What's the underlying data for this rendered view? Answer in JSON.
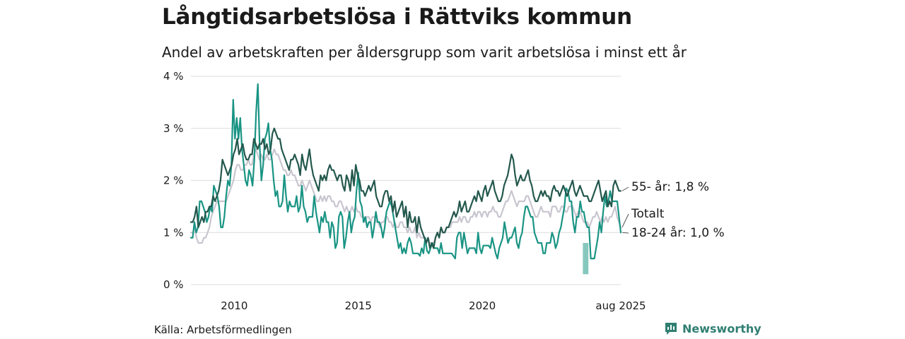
{
  "header": {
    "title": "Långtidsarbetslösa i Rättviks kommun",
    "subtitle": "Andel av arbetskraften per åldersgrupp som varit arbetslösa i minst ett år"
  },
  "footer": {
    "source": "Källa: Arbetsförmedlingen",
    "brand": "Newsworthy"
  },
  "colors": {
    "age55": "#24584d",
    "total": "#c9c6d0",
    "age18_24": "#1a9484",
    "age18_24_band": "#86c8bd",
    "grid": "#dcdcdc",
    "brand": "#2f7f72"
  },
  "chart_data": {
    "type": "line",
    "ylim": [
      0,
      4
    ],
    "y_ticks": [
      0,
      1,
      2,
      3,
      4
    ],
    "y_tick_labels": [
      "0 %",
      "1 %",
      "2 %",
      "3 %",
      "4 %"
    ],
    "x_ticks": [
      {
        "date": "2010-01",
        "label": "2010"
      },
      {
        "date": "2015-01",
        "label": "2015"
      },
      {
        "date": "2020-01",
        "label": "2020"
      },
      {
        "date": "2025-08",
        "label": "aug 2025"
      }
    ],
    "x_start": "2008-04",
    "x_end": "2025-08",
    "series": [
      {
        "name": "55- år",
        "end_label": "55- år: 1,8 %",
        "color": "#24584d",
        "values": [
          1.2,
          1.2,
          1.3,
          1.5,
          1.1,
          1.2,
          1.3,
          1.2,
          1.4,
          1.4,
          1.5,
          1.5,
          1.7,
          1.6,
          1.7,
          1.8,
          2.0,
          2.4,
          2.3,
          2.2,
          2.1,
          2.2,
          2.3,
          2.5,
          2.6,
          2.8,
          2.5,
          2.6,
          2.7,
          2.5,
          2.4,
          2.4,
          2.5,
          2.5,
          2.8,
          2.7,
          2.6,
          2.7,
          2.7,
          2.8,
          2.6,
          2.7,
          2.5,
          2.6,
          2.9,
          3.0,
          2.9,
          2.8,
          2.8,
          2.6,
          2.5,
          2.4,
          2.3,
          2.2,
          2.4,
          2.4,
          2.5,
          2.4,
          2.3,
          2.1,
          2.5,
          2.3,
          2.2,
          2.4,
          2.6,
          2.3,
          2.1,
          2.0,
          1.9,
          1.8,
          2.1,
          2.0,
          2.1,
          2.0,
          2.2,
          2.3,
          2.2,
          2.2,
          2.1,
          2.0,
          2.1,
          2.1,
          1.9,
          1.8,
          2.1,
          2.0,
          1.8,
          2.2,
          1.9,
          2.3,
          2.1,
          2.0,
          1.8,
          1.8,
          1.7,
          1.8,
          1.9,
          1.8,
          1.9,
          2.0,
          1.7,
          1.6,
          1.5,
          1.5,
          1.7,
          1.8,
          1.8,
          1.6,
          1.7,
          1.4,
          1.6,
          1.3,
          1.4,
          1.5,
          1.6,
          1.3,
          1.5,
          1.1,
          1.4,
          1.2,
          1.2,
          1.3,
          1.0,
          1.3,
          1.1,
          1.0,
          0.9,
          0.8,
          0.9,
          0.7,
          0.8,
          0.7,
          0.9,
          1.0,
          0.9,
          1.1,
          1.0,
          1.0,
          1.1,
          1.1,
          1.2,
          1.3,
          1.4,
          1.3,
          1.4,
          1.6,
          1.4,
          1.5,
          1.6,
          1.4,
          1.4,
          1.5,
          1.6,
          1.7,
          1.6,
          1.8,
          1.7,
          1.6,
          1.8,
          1.9,
          1.7,
          1.8,
          1.9,
          2.0,
          1.8,
          1.7,
          1.6,
          1.6,
          1.7,
          1.9,
          2.0,
          2.1,
          2.3,
          2.5,
          2.4,
          2.1,
          1.9,
          2.0,
          2.1,
          2.0,
          2.0,
          2.1,
          2.2,
          2.0,
          1.9,
          1.7,
          1.6,
          1.6,
          1.7,
          1.8,
          1.7,
          1.8,
          1.7,
          1.7,
          1.6,
          1.8,
          1.9,
          1.8,
          1.8,
          1.7,
          1.8,
          1.9,
          1.8,
          1.7,
          1.8,
          1.9,
          2.0,
          1.8,
          1.7,
          1.8,
          1.9,
          1.8,
          1.7,
          1.7,
          1.7,
          1.6,
          1.6,
          1.7,
          1.8,
          1.9,
          2.0,
          1.8,
          1.6,
          1.7,
          1.8,
          1.5,
          1.6,
          1.5,
          1.9,
          2.0,
          1.9,
          1.8,
          1.8
        ]
      },
      {
        "name": "Totalt",
        "end_label": "Totalt",
        "color": "#c9c6d0",
        "values": [
          1.0,
          1.0,
          1.1,
          0.9,
          0.8,
          0.8,
          0.8,
          0.9,
          0.9,
          1.0,
          1.1,
          1.3,
          1.4,
          1.5,
          1.6,
          1.6,
          1.6,
          1.6,
          1.6,
          1.6,
          1.7,
          1.8,
          1.9,
          2.0,
          2.2,
          2.3,
          2.3,
          2.2,
          2.2,
          2.3,
          2.3,
          2.4,
          2.3,
          2.3,
          2.5,
          2.6,
          2.5,
          2.4,
          2.5,
          2.4,
          2.4,
          2.5,
          2.4,
          2.4,
          2.5,
          2.6,
          2.5,
          2.5,
          2.4,
          2.3,
          2.2,
          2.2,
          2.1,
          2.1,
          2.2,
          2.1,
          2.1,
          2.0,
          1.9,
          1.9,
          2.0,
          1.9,
          1.8,
          1.9,
          2.0,
          1.9,
          1.8,
          1.7,
          1.6,
          1.6,
          1.7,
          1.6,
          1.7,
          1.6,
          1.7,
          1.7,
          1.6,
          1.6,
          1.5,
          1.5,
          1.6,
          1.6,
          1.5,
          1.4,
          1.5,
          1.4,
          1.4,
          1.5,
          1.4,
          1.5,
          1.4,
          1.4,
          1.3,
          1.3,
          1.2,
          1.3,
          1.3,
          1.2,
          1.3,
          1.3,
          1.2,
          1.2,
          1.1,
          1.2,
          1.2,
          1.3,
          1.3,
          1.2,
          1.2,
          1.1,
          1.2,
          1.1,
          1.1,
          1.2,
          1.2,
          1.1,
          1.1,
          1.0,
          1.1,
          1.0,
          1.0,
          1.1,
          0.9,
          1.0,
          0.9,
          0.9,
          0.9,
          0.8,
          0.9,
          0.8,
          0.8,
          0.8,
          0.9,
          1.0,
          1.0,
          1.1,
          1.0,
          1.0,
          1.1,
          1.1,
          1.1,
          1.2,
          1.2,
          1.2,
          1.2,
          1.3,
          1.2,
          1.3,
          1.3,
          1.2,
          1.2,
          1.3,
          1.3,
          1.4,
          1.3,
          1.4,
          1.4,
          1.3,
          1.4,
          1.4,
          1.3,
          1.4,
          1.4,
          1.5,
          1.4,
          1.4,
          1.3,
          1.3,
          1.4,
          1.5,
          1.6,
          1.6,
          1.7,
          1.8,
          1.7,
          1.6,
          1.5,
          1.6,
          1.6,
          1.6,
          1.6,
          1.7,
          1.7,
          1.6,
          1.5,
          1.4,
          1.3,
          1.3,
          1.4,
          1.5,
          1.4,
          1.4,
          1.4,
          1.4,
          1.3,
          1.5,
          1.5,
          1.5,
          1.4,
          1.4,
          1.5,
          1.5,
          1.4,
          1.4,
          1.5,
          1.5,
          1.5,
          1.4,
          1.3,
          1.4,
          1.4,
          1.3,
          1.2,
          1.2,
          1.2,
          1.1,
          1.2,
          1.3,
          1.3,
          1.4,
          1.3,
          1.2,
          1.3,
          1.2,
          1.3,
          1.2,
          1.3,
          1.3,
          1.4,
          1.5,
          1.3,
          1.2,
          1.1
        ]
      },
      {
        "name": "18-24 år",
        "end_label": "18-24 år: 1,0 %",
        "color": "#1a9484",
        "values": [
          0.9,
          0.9,
          1.2,
          1.0,
          1.1,
          1.6,
          1.6,
          1.5,
          1.4,
          1.2,
          1.3,
          1.5,
          1.4,
          1.9,
          1.8,
          1.7,
          1.5,
          1.1,
          1.1,
          1.3,
          1.7,
          2.0,
          1.9,
          2.3,
          3.55,
          2.8,
          3.2,
          2.8,
          3.2,
          2.6,
          2.3,
          2.0,
          1.9,
          2.2,
          2.1,
          1.9,
          2.4,
          3.3,
          3.85,
          2.7,
          2.0,
          2.3,
          2.8,
          2.9,
          3.1,
          2.6,
          2.4,
          2.0,
          1.7,
          1.8,
          1.5,
          1.5,
          1.6,
          2.1,
          1.7,
          1.4,
          1.6,
          1.5,
          1.5,
          1.5,
          1.7,
          1.4,
          1.5,
          1.9,
          1.5,
          1.4,
          1.2,
          1.3,
          1.3,
          1.3,
          1.7,
          1.4,
          1.2,
          1.0,
          1.3,
          1.2,
          1.4,
          1.2,
          1.2,
          0.9,
          1.2,
          1.1,
          0.7,
          0.8,
          1.3,
          1.4,
          1.3,
          0.7,
          0.9,
          1.2,
          1.4,
          1.0,
          1.2,
          1.3,
          1.8,
          2.15,
          1.6,
          1.5,
          1.2,
          1.3,
          1.1,
          1.2,
          1.2,
          0.9,
          1.1,
          1.4,
          1.2,
          1.2,
          1.1,
          0.9,
          1.1,
          1.4,
          1.5,
          1.6,
          1.5,
          1.3,
          1.1,
          0.9,
          0.7,
          0.8,
          0.6,
          0.7,
          0.6,
          0.8,
          0.9,
          0.8,
          0.6,
          0.6,
          0.6,
          0.6,
          0.55,
          0.7,
          0.6,
          0.9,
          0.65,
          0.6,
          0.7,
          0.8,
          0.7,
          0.7,
          0.7,
          0.6,
          0.8,
          0.6,
          0.6,
          0.6,
          0.6,
          0.6,
          0.6,
          0.55,
          0.5,
          0.9,
          1.0,
          1.0,
          0.7,
          1.0,
          0.8,
          0.6,
          0.7,
          0.7,
          0.7,
          0.7,
          0.6,
          1.0,
          0.7,
          0.6,
          0.75,
          0.75,
          0.75,
          0.75,
          0.7,
          0.9,
          0.75,
          0.6,
          0.5,
          0.7,
          0.8,
          0.9,
          1.2,
          1.0,
          0.8,
          0.9,
          0.9,
          1.0,
          1.1,
          0.8,
          0.7,
          0.9,
          1.0,
          1.3,
          1.5,
          1.5,
          1.4,
          1.3,
          1.3,
          1.0,
          0.9,
          0.8,
          0.8,
          0.8,
          0.6,
          0.6,
          0.8,
          0.8,
          0.8,
          1.0,
          0.9,
          0.7,
          0.8,
          1.0,
          1.1,
          1.3,
          1.5,
          1.85,
          1.8,
          1.6,
          1.6,
          1.2,
          1.0,
          1.3,
          1.3,
          1.6,
          1.4,
          1.4,
          1.2,
          1.1,
          1.1,
          0.5,
          0.5,
          0.5,
          0.7,
          0.9,
          1.2,
          1.0,
          1.4,
          1.7,
          1.5,
          1.6,
          1.8,
          1.6,
          1.6,
          1.6,
          1.6,
          1.3,
          1.0
        ]
      }
    ],
    "band": {
      "series": "18-24 år",
      "from": "2024-02",
      "to": "2024-04",
      "low": 0.2,
      "high": 0.8
    }
  }
}
